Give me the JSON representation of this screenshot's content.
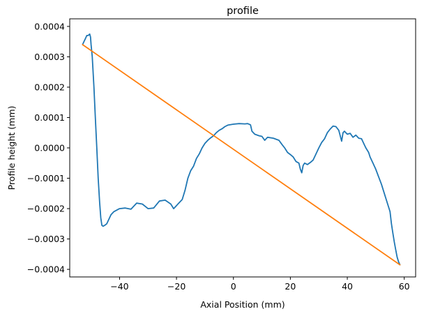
{
  "chart_data": {
    "type": "line",
    "title": "profile",
    "xlabel": "Axial Position (mm)",
    "ylabel": "Profile height (mm)",
    "xlim": [
      -57.5,
      64
    ],
    "ylim": [
      -0.000425,
      0.000425
    ],
    "grid": false,
    "x_ticks": [
      -40,
      -20,
      0,
      20,
      40,
      60
    ],
    "x_tick_labels": [
      "−40",
      "−20",
      "0",
      "20",
      "40",
      "60"
    ],
    "y_ticks": [
      0.0004,
      0.0003,
      0.0002,
      0.0001,
      0.0,
      -0.0001,
      -0.0002,
      -0.0003,
      -0.0004
    ],
    "y_tick_labels": [
      "0.0004",
      "0.0003",
      "0.0002",
      "0.0001",
      "0.0000",
      "−0.0001",
      "−0.0002",
      "−0.0003",
      "−0.0004"
    ],
    "series": [
      {
        "color": "#1f77b4",
        "points": [
          [
            -53.0,
            0.00034
          ],
          [
            -52.5,
            0.00035
          ],
          [
            -52.0,
            0.00036
          ],
          [
            -51.5,
            0.00037
          ],
          [
            -51.0,
            0.00037
          ],
          [
            -50.5,
            0.000375
          ],
          [
            -50.2,
            0.000365
          ],
          [
            -50.0,
            0.00034
          ],
          [
            -49.6,
            0.0003
          ],
          [
            -49.0,
            0.0002
          ],
          [
            -48.5,
            0.0001
          ],
          [
            -48.0,
            0.0
          ],
          [
            -47.5,
            -0.0001
          ],
          [
            -47.0,
            -0.00018
          ],
          [
            -46.6,
            -0.00023
          ],
          [
            -46.2,
            -0.000255
          ],
          [
            -45.8,
            -0.000258
          ],
          [
            -45.2,
            -0.000255
          ],
          [
            -44.5,
            -0.00025
          ],
          [
            -44.0,
            -0.00024
          ],
          [
            -43.0,
            -0.00022
          ],
          [
            -42.0,
            -0.00021
          ],
          [
            -40.0,
            -0.0002
          ],
          [
            -38.0,
            -0.000198
          ],
          [
            -36.0,
            -0.000202
          ],
          [
            -34.0,
            -0.000182
          ],
          [
            -32.0,
            -0.000185
          ],
          [
            -30.0,
            -0.0002
          ],
          [
            -28.0,
            -0.000198
          ],
          [
            -26.0,
            -0.000175
          ],
          [
            -24.0,
            -0.000172
          ],
          [
            -22.0,
            -0.000185
          ],
          [
            -21.0,
            -0.0002
          ],
          [
            -20.0,
            -0.00019
          ],
          [
            -18.0,
            -0.00017
          ],
          [
            -17.0,
            -0.00014
          ],
          [
            -16.0,
            -0.0001
          ],
          [
            -15.0,
            -7.5e-05
          ],
          [
            -14.0,
            -6e-05
          ],
          [
            -13.0,
            -3.5e-05
          ],
          [
            -12.0,
            -2e-05
          ],
          [
            -11.0,
            0.0
          ],
          [
            -10.0,
            1.5e-05
          ],
          [
            -9.0,
            2.5e-05
          ],
          [
            -8.0,
            3.3e-05
          ],
          [
            -7.0,
            4e-05
          ],
          [
            -6.0,
            5e-05
          ],
          [
            -5.0,
            5.8e-05
          ],
          [
            -4.0,
            6.3e-05
          ],
          [
            -3.0,
            7e-05
          ],
          [
            -2.0,
            7.5e-05
          ],
          [
            0.0,
            7.8e-05
          ],
          [
            2.0,
            8e-05
          ],
          [
            4.0,
            7.9e-05
          ],
          [
            5.0,
            8e-05
          ],
          [
            6.0,
            7.6e-05
          ],
          [
            6.5,
            5.5e-05
          ],
          [
            7.5,
            4.5e-05
          ],
          [
            9.0,
            4e-05
          ],
          [
            10.0,
            3.8e-05
          ],
          [
            11.0,
            2.5e-05
          ],
          [
            12.0,
            3.5e-05
          ],
          [
            14.0,
            3.2e-05
          ],
          [
            16.0,
            2.5e-05
          ],
          [
            17.0,
            1.2e-05
          ],
          [
            18.0,
            0.0
          ],
          [
            19.0,
            -1.5e-05
          ],
          [
            20.0,
            -2.2e-05
          ],
          [
            21.0,
            -3e-05
          ],
          [
            22.0,
            -4.5e-05
          ],
          [
            23.0,
            -5e-05
          ],
          [
            23.5,
            -7e-05
          ],
          [
            24.0,
            -8.2e-05
          ],
          [
            24.5,
            -5.8e-05
          ],
          [
            25.0,
            -5e-05
          ],
          [
            26.0,
            -5.5e-05
          ],
          [
            27.0,
            -4.8e-05
          ],
          [
            28.0,
            -4e-05
          ],
          [
            29.0,
            -2e-05
          ],
          [
            30.0,
            0.0
          ],
          [
            31.0,
            1.8e-05
          ],
          [
            32.0,
            3e-05
          ],
          [
            33.0,
            5e-05
          ],
          [
            34.0,
            6.2e-05
          ],
          [
            35.0,
            7.2e-05
          ],
          [
            36.0,
            7e-05
          ],
          [
            37.0,
            5.8e-05
          ],
          [
            38.0,
            2.2e-05
          ],
          [
            38.5,
            5e-05
          ],
          [
            39.0,
            5.5e-05
          ],
          [
            40.0,
            4.5e-05
          ],
          [
            41.0,
            4.8e-05
          ],
          [
            42.0,
            3.5e-05
          ],
          [
            43.0,
            4.2e-05
          ],
          [
            44.0,
            3.2e-05
          ],
          [
            45.0,
            3e-05
          ],
          [
            46.0,
            1e-05
          ],
          [
            46.5,
            0.0
          ],
          [
            47.5,
            -1.5e-05
          ],
          [
            48.0,
            -3e-05
          ],
          [
            49.0,
            -5e-05
          ],
          [
            50.0,
            -7e-05
          ],
          [
            51.0,
            -9.5e-05
          ],
          [
            52.0,
            -0.00012
          ],
          [
            53.0,
            -0.00015
          ],
          [
            54.0,
            -0.00018
          ],
          [
            55.0,
            -0.00021
          ],
          [
            55.5,
            -0.00025
          ],
          [
            56.0,
            -0.00028
          ],
          [
            56.5,
            -0.00031
          ],
          [
            57.0,
            -0.000335
          ],
          [
            57.5,
            -0.00036
          ],
          [
            58.0,
            -0.000375
          ],
          [
            58.5,
            -0.000385
          ]
        ]
      },
      {
        "color": "#ff7f0e",
        "points": [
          [
            -53.0,
            0.00034
          ],
          [
            58.5,
            -0.000385
          ]
        ]
      }
    ]
  }
}
